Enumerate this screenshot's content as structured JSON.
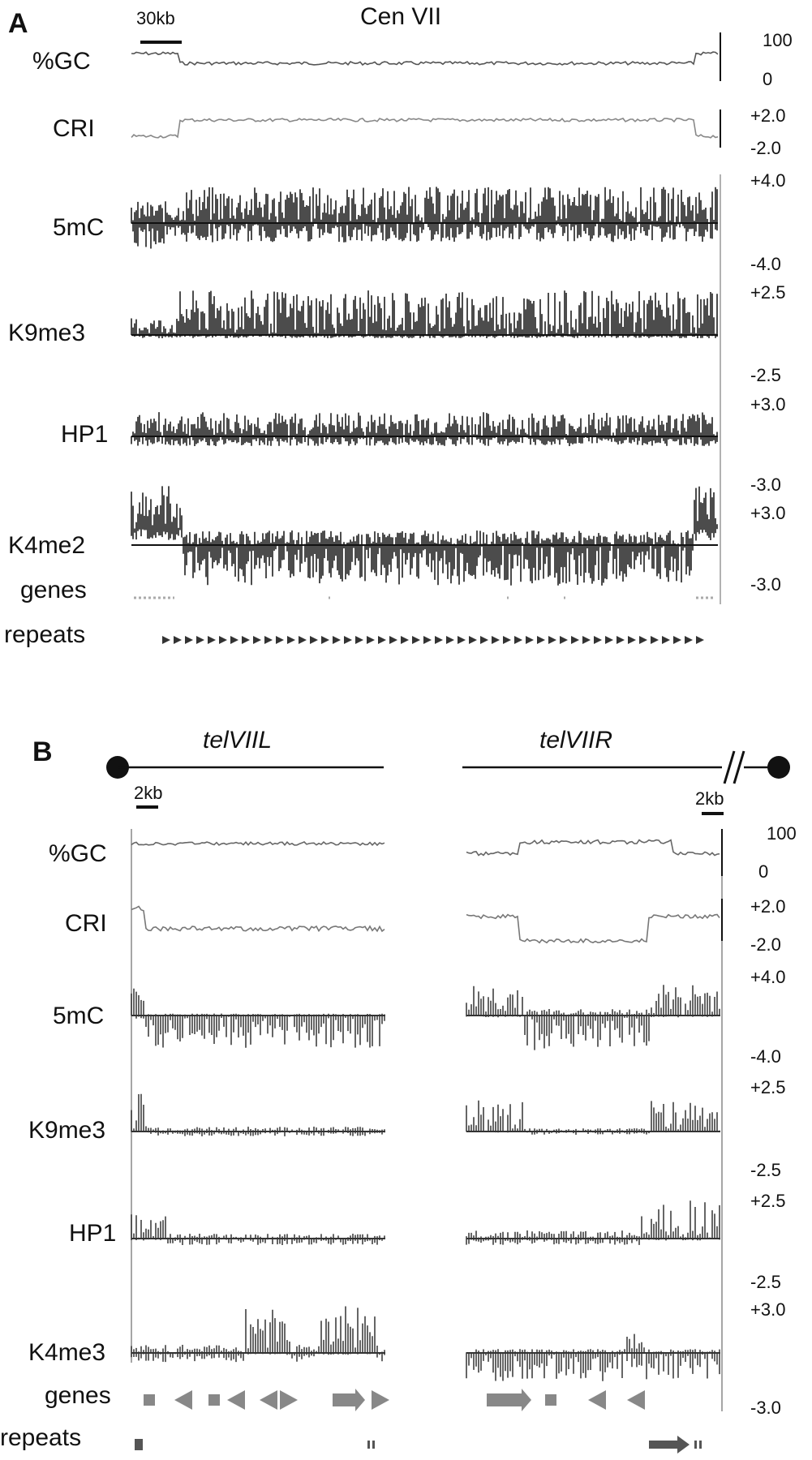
{
  "panel_a": {
    "letter": "A",
    "title": "Cen VII",
    "scale_bar": "30kb",
    "tracks": [
      {
        "name": "%GC",
        "scale_top": "100",
        "scale_bottom": "0"
      },
      {
        "name": "CRI",
        "scale_top": "+2.0",
        "scale_bottom": "-2.0"
      },
      {
        "name": "5mC",
        "scale_top": "+4.0",
        "scale_bottom": "-4.0"
      },
      {
        "name": "K9me3",
        "scale_top": "+2.5",
        "scale_bottom": "-2.5"
      },
      {
        "name": "HP1",
        "scale_top": "+3.0",
        "scale_bottom": "-3.0"
      },
      {
        "name": "K4me2",
        "scale_top": "+3.0",
        "scale_bottom": "-3.0"
      },
      {
        "name": "genes"
      },
      {
        "name": "repeats"
      }
    ]
  },
  "panel_b": {
    "letter": "B",
    "left_title": "telVIIL",
    "right_title": "telVIIR",
    "left_scale_bar": "2kb",
    "right_scale_bar": "2kb",
    "tracks": [
      {
        "name": "%GC",
        "scale_top": "100",
        "scale_bottom": "0"
      },
      {
        "name": "CRI",
        "scale_top": "+2.0",
        "scale_bottom": "-2.0"
      },
      {
        "name": "5mC",
        "scale_top": "+4.0",
        "scale_bottom": "-4.0"
      },
      {
        "name": "K9me3",
        "scale_top": "+2.5",
        "scale_bottom": "-2.5"
      },
      {
        "name": "HP1",
        "scale_top": "+2.5",
        "scale_bottom": "-2.5"
      },
      {
        "name": "K4me3",
        "scale_top": "+3.0",
        "scale_bottom": "-3.0"
      },
      {
        "name": "genes"
      },
      {
        "name": "repeats"
      }
    ]
  }
}
